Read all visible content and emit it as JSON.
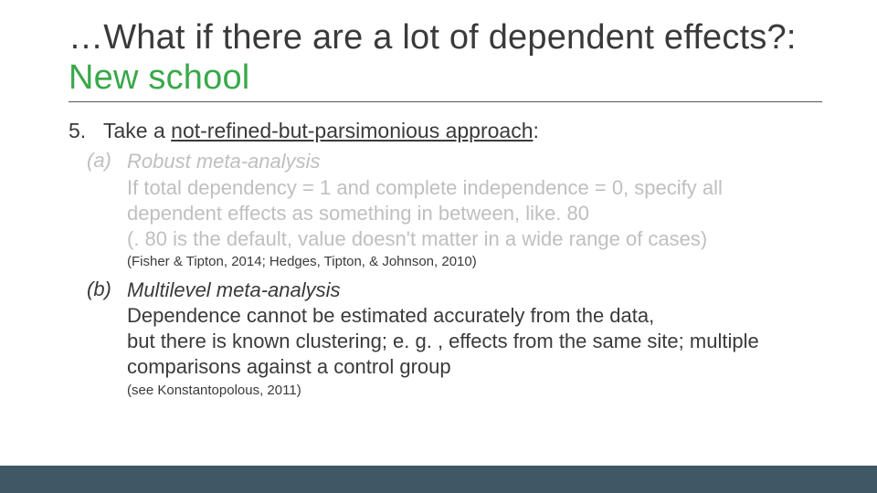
{
  "colors": {
    "accent": "#39a84a",
    "text": "#3a3a3a",
    "muted": "#bfbfbf",
    "rule": "#555555",
    "bottom_bar": "#3f5866",
    "background": "#ffffff"
  },
  "typography": {
    "title_fontsize": 38,
    "l1_fontsize": 23,
    "l2_fontsize": 22,
    "citation_fontsize": 15,
    "font_family": "Segoe UI"
  },
  "title": {
    "prefix": "…What if there are a lot of dependent effects?: ",
    "accent": "New school"
  },
  "item": {
    "number": "5.",
    "text_lead": "Take a ",
    "text_underlined": "not-refined-but-parsimonious approach",
    "text_tail": ":"
  },
  "sub_a": {
    "marker": "(a)",
    "subtitle": "Robust meta-analysis",
    "line1": "If total dependency = 1 and complete independence = 0, specify all dependent effects as something in between, like. 80",
    "line2": "(. 80 is the default, value doesn't matter in a wide range of cases)",
    "citation": "(Fisher & Tipton, 2014; Hedges, Tipton, & Johnson, 2010)"
  },
  "sub_b": {
    "marker": "(b)",
    "subtitle": "Multilevel meta-analysis",
    "line1": "Dependence cannot be estimated accurately from the data,",
    "line2": "but there is known clustering; e. g. , effects from the same site; multiple comparisons against a control group",
    "citation": "(see Konstantopolous, 2011)"
  }
}
